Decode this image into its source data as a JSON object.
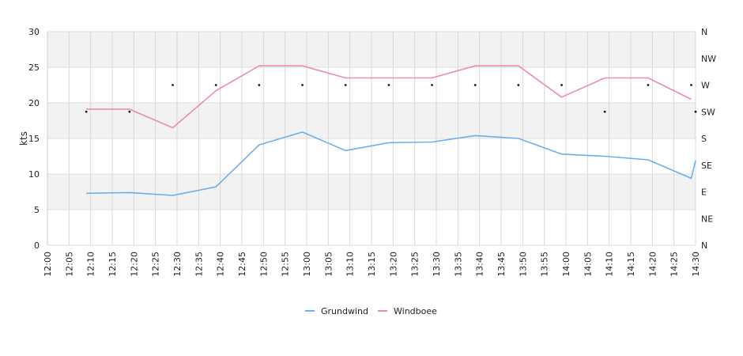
{
  "chart_data": {
    "type": "line",
    "title": "",
    "ylabel": "kts",
    "ylim": [
      0,
      30
    ],
    "yticks": [
      0,
      5,
      10,
      15,
      20,
      25,
      30
    ],
    "y2ticks": [
      "N",
      "NE",
      "E",
      "SE",
      "S",
      "SW",
      "W",
      "NW",
      "N"
    ],
    "x_ticks": [
      "12:00",
      "12:05",
      "12:10",
      "12:15",
      "12:20",
      "12:25",
      "12:30",
      "12:35",
      "12:40",
      "12:45",
      "12:50",
      "12:55",
      "13:00",
      "13:05",
      "13:10",
      "13:15",
      "13:20",
      "13:25",
      "13:30",
      "13:35",
      "13:40",
      "13:45",
      "13:50",
      "13:55",
      "14:00",
      "14:05",
      "14:10",
      "14:15",
      "14:20",
      "14:25",
      "14:30"
    ],
    "grid": true,
    "legend_position": "bottom",
    "series": [
      {
        "name": "Grundwind",
        "color": "#6aaeee",
        "points": [
          [
            "12:09",
            7.3
          ],
          [
            "12:19",
            7.4
          ],
          [
            "12:29",
            7.0
          ],
          [
            "12:39",
            8.2
          ],
          [
            "12:49",
            14.1
          ],
          [
            "12:59",
            15.9
          ],
          [
            "13:09",
            13.3
          ],
          [
            "13:19",
            14.4
          ],
          [
            "13:29",
            14.5
          ],
          [
            "13:39",
            15.4
          ],
          [
            "13:49",
            15.0
          ],
          [
            "13:59",
            12.8
          ],
          [
            "14:09",
            12.5
          ],
          [
            "14:19",
            12.0
          ],
          [
            "14:29",
            9.4
          ],
          [
            "14:30",
            11.9
          ]
        ]
      },
      {
        "name": "Windboee",
        "color": "#ee88bb",
        "points": [
          [
            "12:09",
            19.1
          ],
          [
            "12:19",
            19.1
          ],
          [
            "12:29",
            16.5
          ],
          [
            "12:39",
            21.7
          ],
          [
            "12:49",
            25.2
          ],
          [
            "12:59",
            25.2
          ],
          [
            "13:09",
            23.5
          ],
          [
            "13:19",
            23.5
          ],
          [
            "13:29",
            23.5
          ],
          [
            "13:39",
            25.2
          ],
          [
            "13:49",
            25.2
          ],
          [
            "13:59",
            20.8
          ],
          [
            "14:09",
            23.5
          ],
          [
            "14:19",
            23.5
          ],
          [
            "14:29",
            20.5
          ]
        ]
      }
    ],
    "direction_markers": [
      [
        "12:09",
        "SW"
      ],
      [
        "12:19",
        "SW"
      ],
      [
        "12:29",
        "W"
      ],
      [
        "12:39",
        "W"
      ],
      [
        "12:49",
        "W"
      ],
      [
        "12:59",
        "W"
      ],
      [
        "13:09",
        "W"
      ],
      [
        "13:19",
        "W"
      ],
      [
        "13:29",
        "W"
      ],
      [
        "13:39",
        "W"
      ],
      [
        "13:49",
        "W"
      ],
      [
        "13:59",
        "W"
      ],
      [
        "14:09",
        "SW"
      ],
      [
        "14:19",
        "W"
      ],
      [
        "14:29",
        "W"
      ],
      [
        "14:30",
        "SW"
      ]
    ]
  }
}
